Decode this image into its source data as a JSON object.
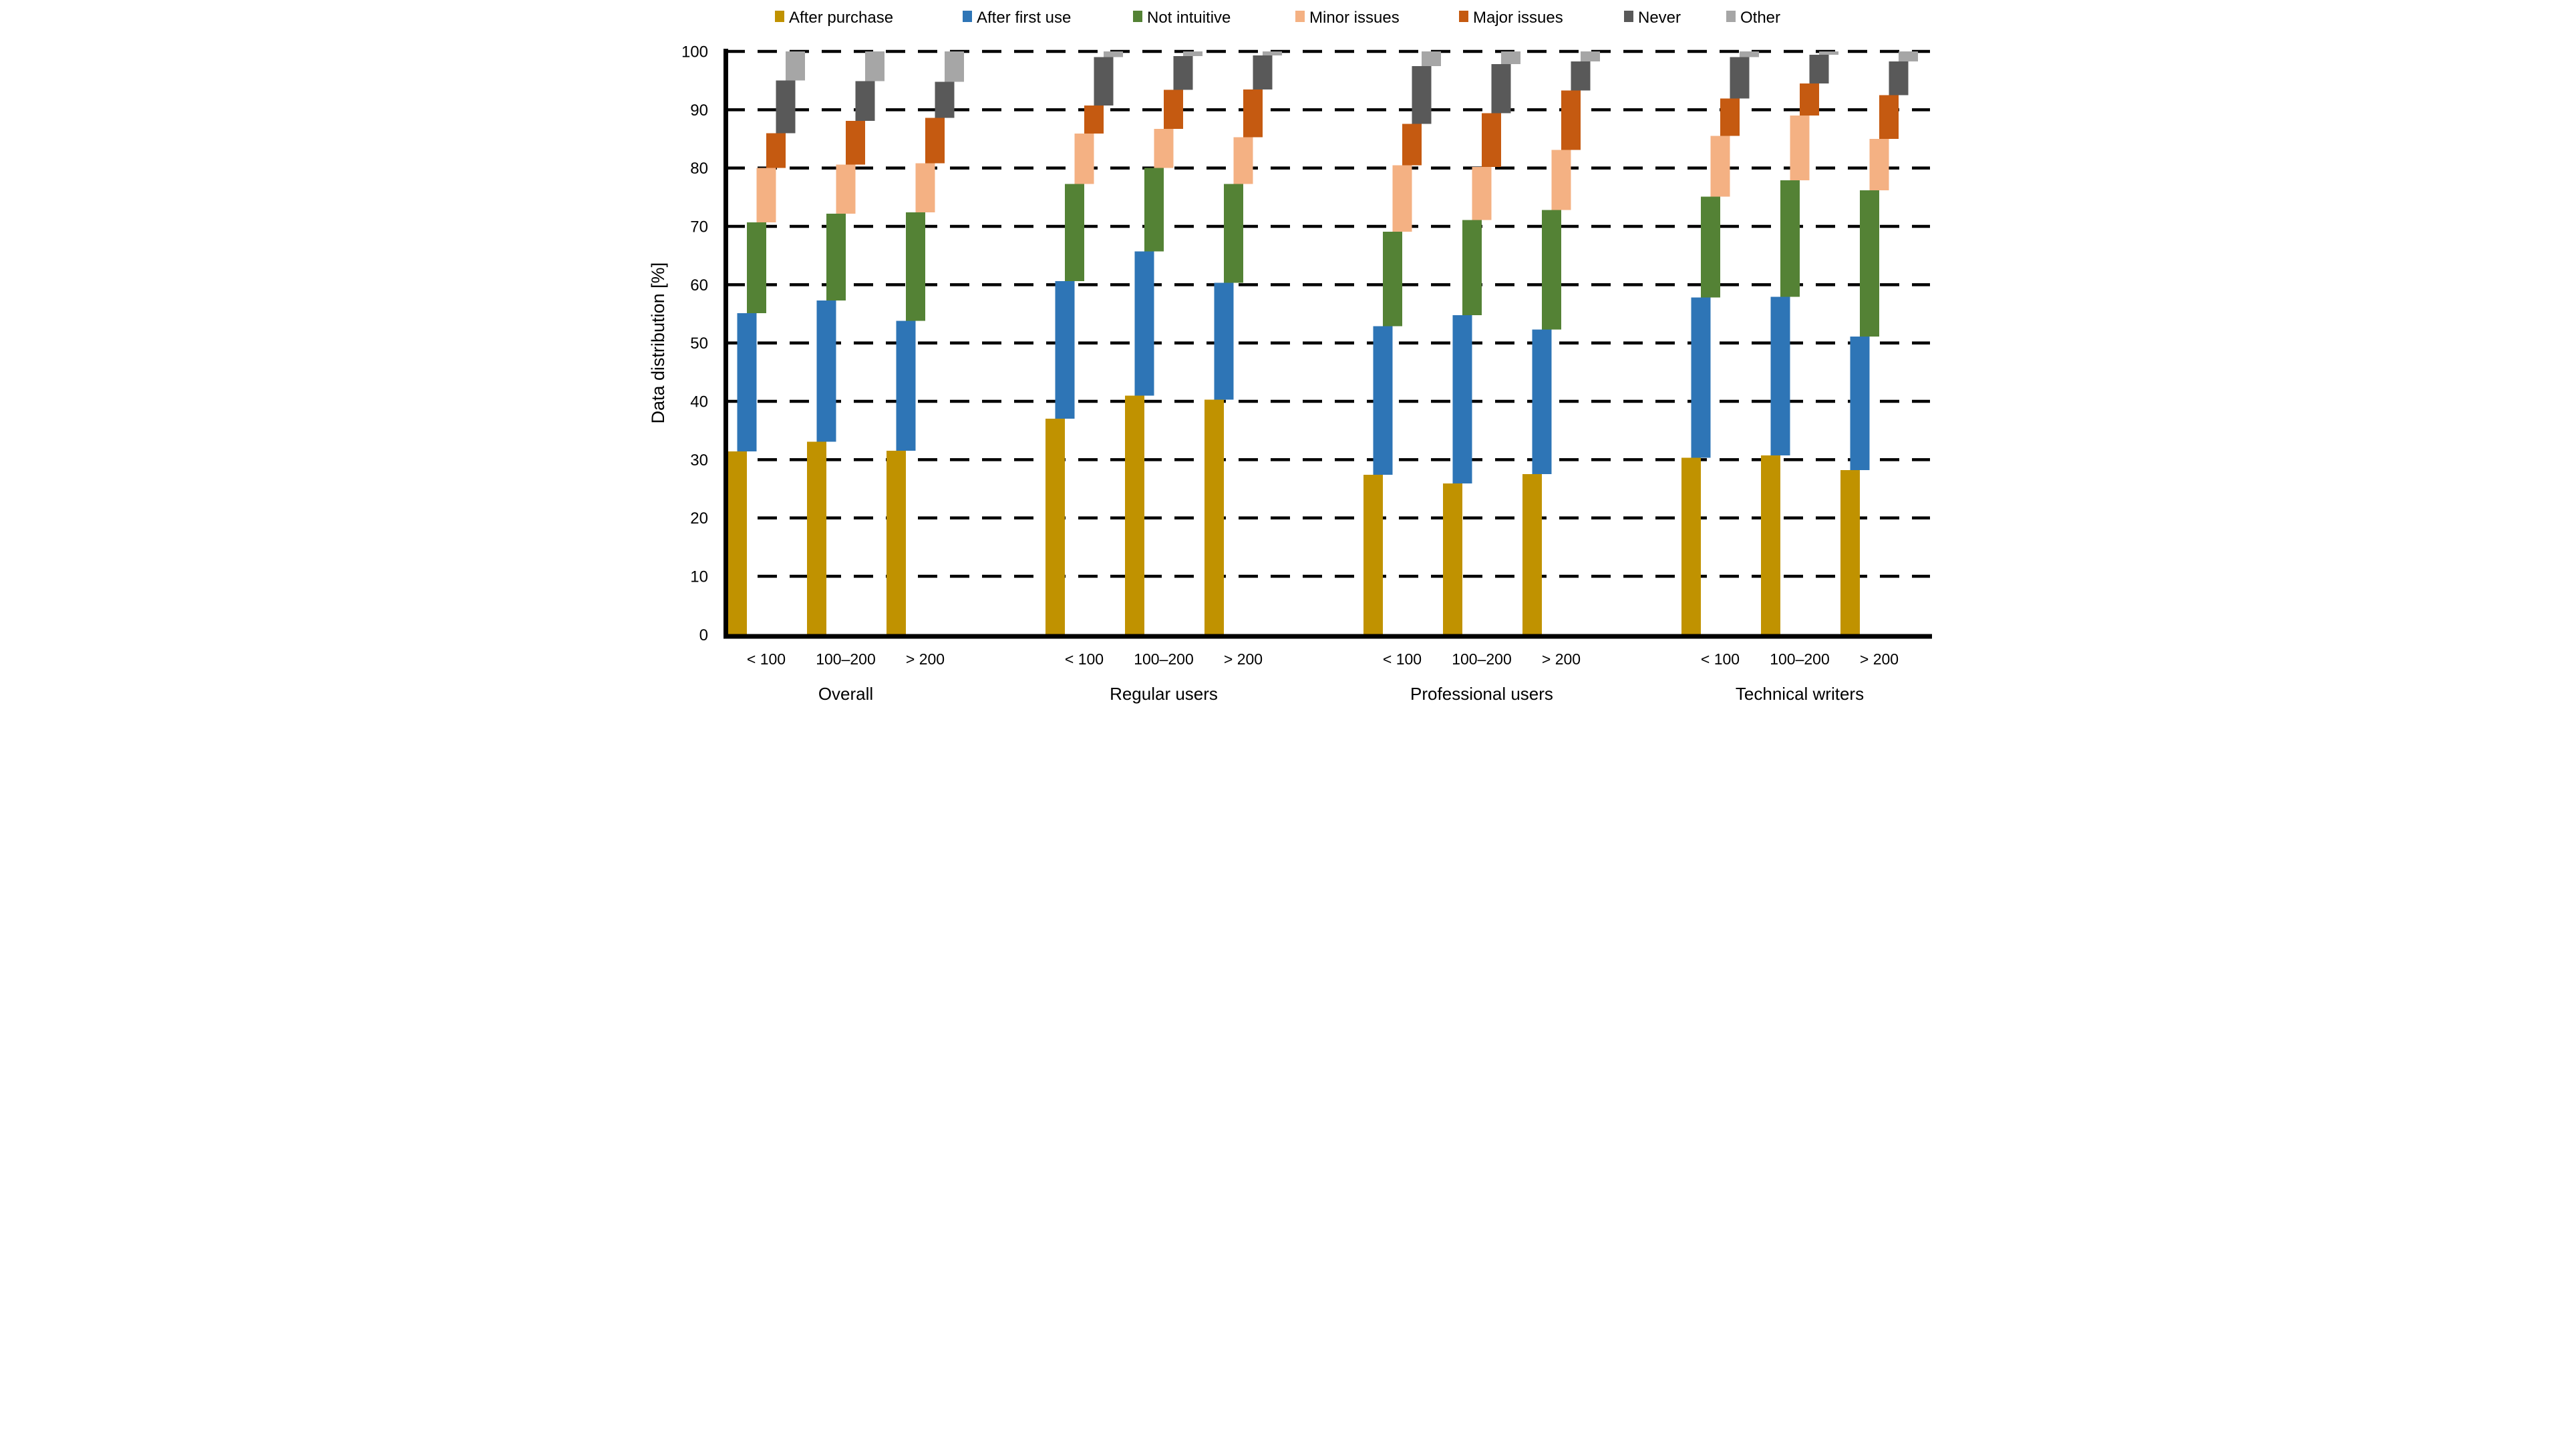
{
  "page": {
    "background": "#FFFFFF"
  },
  "chart_data": {
    "type": "bar",
    "variant": "stacked-staggered-columns",
    "title": "",
    "xlabel": "",
    "ylabel": "Data distribution [%]",
    "ylim": [
      0,
      100
    ],
    "ytick_step": 10,
    "yticks": [
      0,
      10,
      20,
      30,
      40,
      50,
      60,
      70,
      80,
      90,
      100
    ],
    "grid": "horizontal-dashed-black",
    "legend_position": "top",
    "axis_color": "#000000",
    "text_color": "#000000",
    "series": [
      {
        "name": "After purchase",
        "color": "#C09200"
      },
      {
        "name": "After first use",
        "color": "#2E75B6"
      },
      {
        "name": "Not intuitive",
        "color": "#548235"
      },
      {
        "name": "Minor issues",
        "color": "#F4B183"
      },
      {
        "name": "Major issues",
        "color": "#C55A11"
      },
      {
        "name": "Never",
        "color": "#595959"
      },
      {
        "name": "Other",
        "color": "#A6A6A6"
      }
    ],
    "categories": [
      "< 100",
      "100–200",
      "> 200"
    ],
    "groups": [
      {
        "label": "Overall",
        "bars": [
          {
            "category": "< 100",
            "values": [
              31.4,
              23.7,
              15.6,
              9.3,
              6.0,
              9.0,
              5.0
            ]
          },
          {
            "category": "100–200",
            "values": [
              33.1,
              24.2,
              14.9,
              8.4,
              7.5,
              6.8,
              5.1
            ]
          },
          {
            "category": "> 200",
            "values": [
              31.5,
              22.3,
              18.6,
              8.4,
              7.8,
              6.2,
              5.2
            ]
          }
        ]
      },
      {
        "label": "Regular users",
        "bars": [
          {
            "category": "< 100",
            "values": [
              37.0,
              23.6,
              16.7,
              8.6,
              4.8,
              8.3,
              1.0
            ]
          },
          {
            "category": "100–200",
            "values": [
              41.0,
              24.7,
              14.3,
              6.7,
              6.7,
              5.8,
              0.8
            ]
          },
          {
            "category": "> 200",
            "values": [
              40.3,
              20.0,
              17.0,
              8.0,
              8.2,
              5.8,
              0.7
            ]
          }
        ]
      },
      {
        "label": "Professional users",
        "bars": [
          {
            "category": "< 100",
            "values": [
              27.4,
              25.5,
              16.2,
              11.4,
              7.1,
              9.9,
              2.5
            ]
          },
          {
            "category": "100–200",
            "values": [
              25.9,
              28.9,
              16.3,
              9.1,
              9.2,
              8.4,
              2.2
            ]
          },
          {
            "category": "> 200",
            "values": [
              27.5,
              24.8,
              20.5,
              10.3,
              10.2,
              5.0,
              1.7
            ]
          }
        ]
      },
      {
        "label": "Technical writers",
        "bars": [
          {
            "category": "< 100",
            "values": [
              30.3,
              27.5,
              17.3,
              10.4,
              6.4,
              7.1,
              1.0
            ]
          },
          {
            "category": "100–200",
            "values": [
              30.7,
              27.2,
              20.0,
              11.1,
              5.5,
              4.9,
              0.6
            ]
          },
          {
            "category": "> 200",
            "values": [
              28.2,
              22.9,
              25.1,
              8.8,
              7.5,
              5.8,
              1.7
            ]
          }
        ]
      }
    ]
  }
}
